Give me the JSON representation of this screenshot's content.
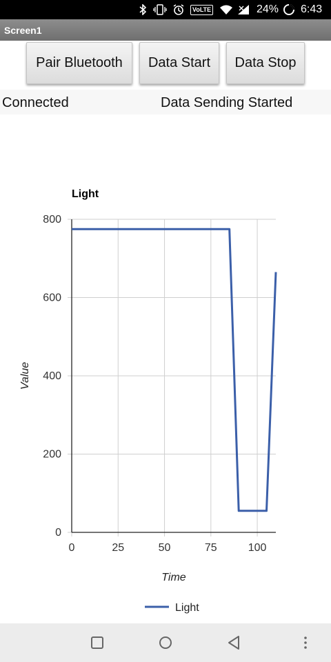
{
  "status_bar": {
    "battery_percent": "24%",
    "time": "6:43",
    "volte_label": "VoLTE",
    "icons": [
      "bluetooth-icon",
      "vibrate-icon",
      "alarm-icon",
      "volte-icon",
      "wifi-icon",
      "signal-icon",
      "battery-icon"
    ]
  },
  "screen": {
    "title": "Screen1"
  },
  "buttons": {
    "pair": "Pair Bluetooth",
    "start": "Data Start",
    "stop": "Data Stop"
  },
  "labels": {
    "connection": "Connected",
    "sending": "Data Sending Started"
  },
  "chart_data": {
    "type": "line",
    "title": "Light",
    "xlabel": "Time",
    "ylabel": "Value",
    "xlim": [
      0,
      110
    ],
    "ylim": [
      0,
      800
    ],
    "x_ticks": [
      "0",
      "25",
      "50",
      "75",
      "100"
    ],
    "y_ticks": [
      "0",
      "200",
      "400",
      "600",
      "800"
    ],
    "grid": true,
    "legend_position": "bottom",
    "series": [
      {
        "name": "Light",
        "color": "#3b5fa9",
        "x": [
          0,
          85,
          90,
          105,
          110
        ],
        "y": [
          775,
          775,
          55,
          55,
          665
        ]
      }
    ]
  },
  "nav_bar": {
    "icons": [
      "recent-apps-icon",
      "home-icon",
      "back-icon",
      "menu-dots-icon"
    ]
  }
}
